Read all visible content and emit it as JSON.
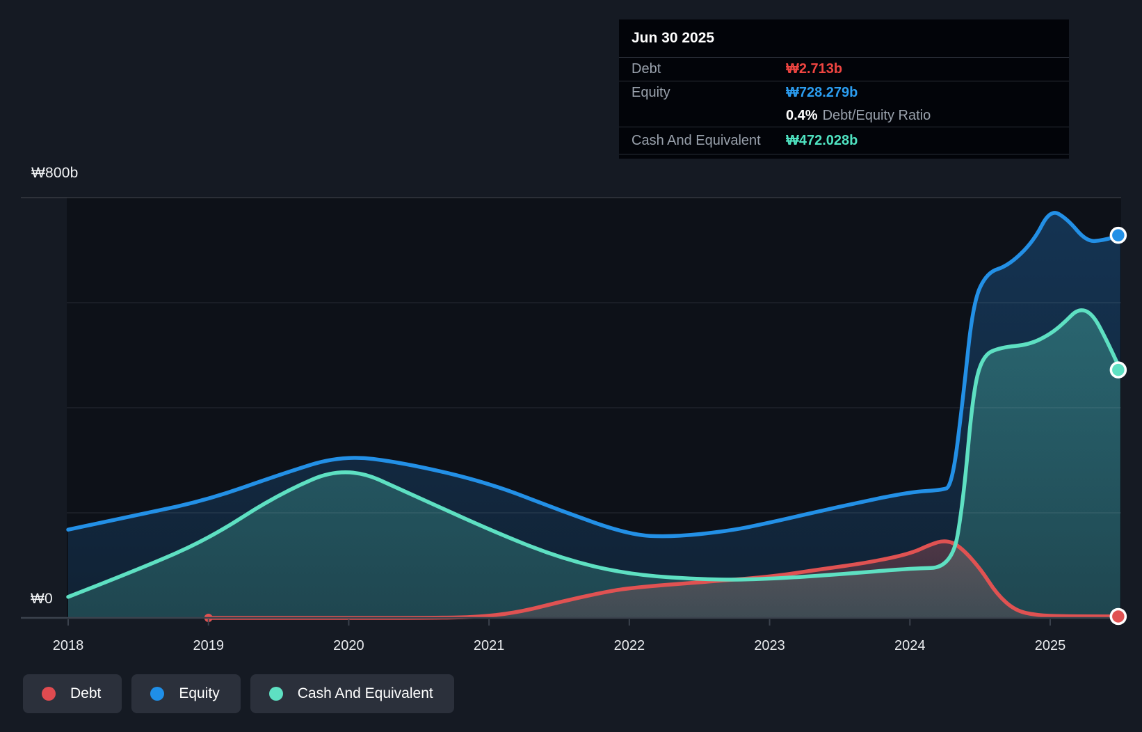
{
  "y_axis": {
    "top_label": "₩800b",
    "zero_label": "₩0"
  },
  "x_axis": {
    "years": [
      "2018",
      "2019",
      "2020",
      "2021",
      "2022",
      "2023",
      "2024",
      "2025"
    ]
  },
  "tooltip": {
    "date": "Jun 30 2025",
    "debt_label": "Debt",
    "debt_value": "₩2.713b",
    "equity_label": "Equity",
    "equity_value": "₩728.279b",
    "ratio_value": "0.4%",
    "ratio_label": "Debt/Equity Ratio",
    "cash_label": "Cash And Equivalent",
    "cash_value": "₩472.028b"
  },
  "legend": [
    {
      "label": "Debt",
      "color": "#e04b50"
    },
    {
      "label": "Equity",
      "color": "#1f8fe8"
    },
    {
      "label": "Cash And Equivalent",
      "color": "#5ee0c2"
    }
  ],
  "colors": {
    "background": "#151a23",
    "plot_background": "#0d1118",
    "axis_line": "#3b424d",
    "gridline": "rgba(255,255,255,0.08)",
    "top_gridline": "rgba(255,255,255,0.14)",
    "debt": "#e05252",
    "equity": "#2390e6",
    "cash": "#5ee0c2",
    "debt_value_text": "#ef4541",
    "equity_value_text": "#2b9df0",
    "cash_value_text": "#4fe3c1"
  },
  "chart_data": {
    "type": "area",
    "title": "Debt to Equity History with Cash And Equivalent",
    "x_range": [
      2018,
      2025.5
    ],
    "ylim_b": [
      0,
      800
    ],
    "y_tick_interval_b": 200,
    "grid": true,
    "legend_position": "bottom-left",
    "x_tick_labels": [
      "2018",
      "2019",
      "2020",
      "2021",
      "2022",
      "2023",
      "2024",
      "2025"
    ],
    "hover_point": {
      "date": "Jun 30 2025",
      "debt_b": 2.713,
      "equity_b": 728.279,
      "cash_b": 472.028,
      "debt_equity_ratio_pct": 0.4
    },
    "series": [
      {
        "name": "Equity",
        "color": "#2390e6",
        "unit": "₩b",
        "start_dot": false,
        "points": [
          [
            2018.0,
            168
          ],
          [
            2018.5,
            196
          ],
          [
            2019.0,
            225
          ],
          [
            2019.5,
            272
          ],
          [
            2019.95,
            310
          ],
          [
            2020.4,
            295
          ],
          [
            2021.0,
            257
          ],
          [
            2021.5,
            205
          ],
          [
            2022.0,
            158
          ],
          [
            2022.3,
            154
          ],
          [
            2022.7,
            165
          ],
          [
            2023.0,
            181
          ],
          [
            2023.5,
            212
          ],
          [
            2024.0,
            240
          ],
          [
            2024.22,
            243
          ],
          [
            2024.3,
            250
          ],
          [
            2024.38,
            420
          ],
          [
            2024.45,
            600
          ],
          [
            2024.55,
            658
          ],
          [
            2024.7,
            670
          ],
          [
            2024.88,
            716
          ],
          [
            2025.0,
            778
          ],
          [
            2025.12,
            760
          ],
          [
            2025.26,
            716
          ],
          [
            2025.38,
            719
          ],
          [
            2025.5,
            728.279
          ]
        ]
      },
      {
        "name": "Cash And Equivalent",
        "color": "#5ee0c2",
        "unit": "₩b",
        "start_dot": false,
        "points": [
          [
            2018.0,
            40
          ],
          [
            2018.5,
            92
          ],
          [
            2019.0,
            150
          ],
          [
            2019.5,
            236
          ],
          [
            2019.98,
            291
          ],
          [
            2020.45,
            235
          ],
          [
            2021.0,
            168
          ],
          [
            2021.5,
            114
          ],
          [
            2022.0,
            82
          ],
          [
            2022.6,
            72
          ],
          [
            2023.0,
            74
          ],
          [
            2023.5,
            83
          ],
          [
            2024.0,
            94
          ],
          [
            2024.3,
            96
          ],
          [
            2024.38,
            220
          ],
          [
            2024.45,
            430
          ],
          [
            2024.52,
            500
          ],
          [
            2024.65,
            515
          ],
          [
            2024.85,
            520
          ],
          [
            2025.0,
            540
          ],
          [
            2025.1,
            562
          ],
          [
            2025.2,
            589
          ],
          [
            2025.3,
            580
          ],
          [
            2025.4,
            530
          ],
          [
            2025.5,
            472.028
          ]
        ]
      },
      {
        "name": "Debt",
        "color": "#e05252",
        "unit": "₩b",
        "start_dot": true,
        "points": [
          [
            2019.0,
            0
          ],
          [
            2019.5,
            0
          ],
          [
            2020.0,
            0
          ],
          [
            2020.5,
            0
          ],
          [
            2020.9,
            1
          ],
          [
            2021.2,
            10
          ],
          [
            2021.5,
            30
          ],
          [
            2021.8,
            48
          ],
          [
            2022.0,
            57
          ],
          [
            2022.5,
            68
          ],
          [
            2023.0,
            78
          ],
          [
            2023.35,
            92
          ],
          [
            2023.7,
            105
          ],
          [
            2024.0,
            122
          ],
          [
            2024.15,
            140
          ],
          [
            2024.25,
            148
          ],
          [
            2024.35,
            138
          ],
          [
            2024.5,
            95
          ],
          [
            2024.62,
            45
          ],
          [
            2024.75,
            14
          ],
          [
            2024.9,
            5
          ],
          [
            2025.1,
            3
          ],
          [
            2025.3,
            2.8
          ],
          [
            2025.5,
            2.713
          ]
        ]
      }
    ]
  }
}
